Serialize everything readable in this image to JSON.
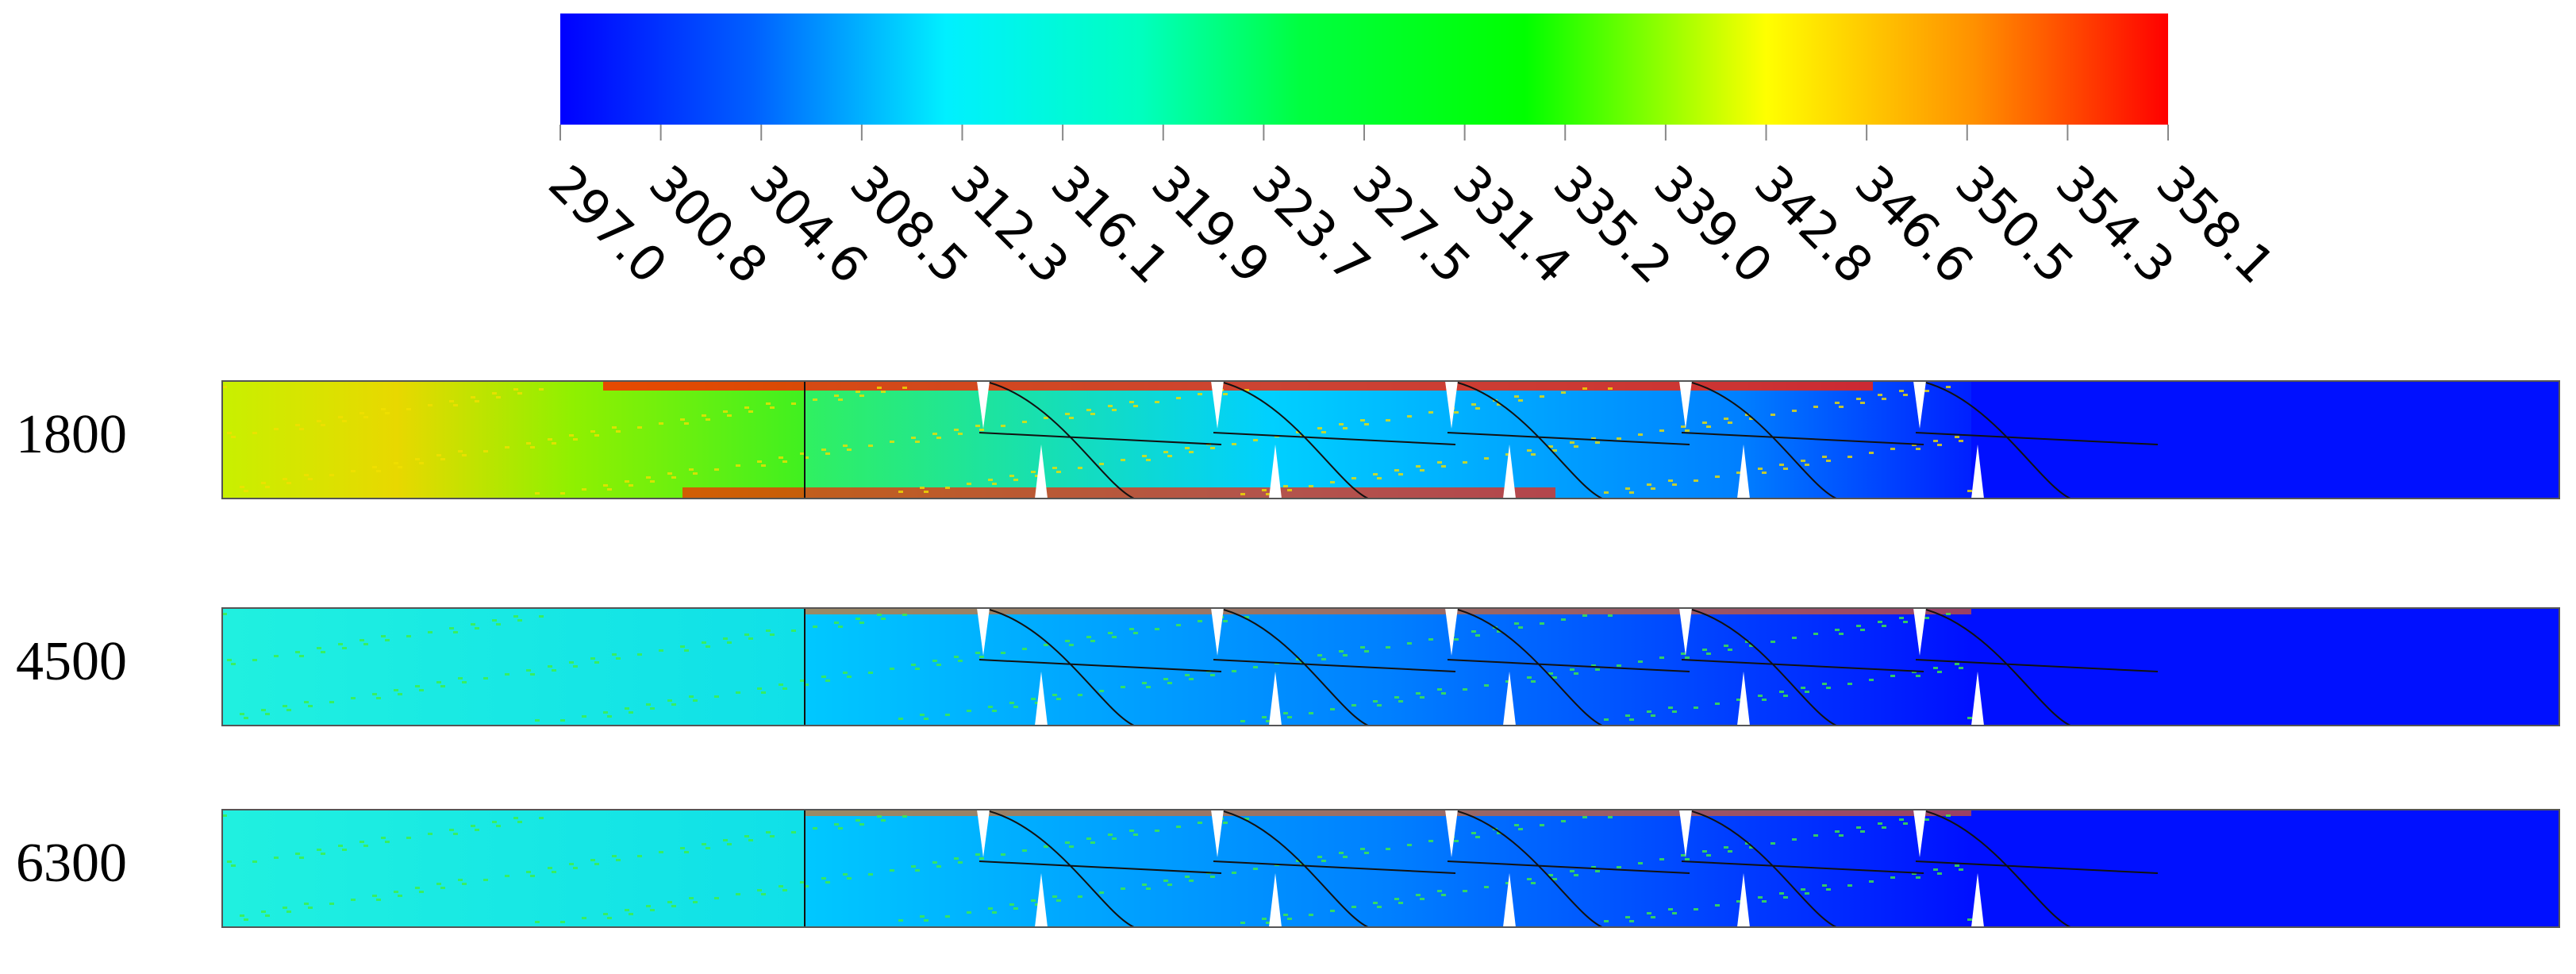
{
  "colorbar": {
    "ticks": [
      "297.0",
      "300.8",
      "304.6",
      "308.5",
      "312.3",
      "316.1",
      "319.9",
      "323.7",
      "327.5",
      "331.4",
      "335.2",
      "339.0",
      "342.8",
      "346.6",
      "350.5",
      "354.3",
      "358.1"
    ]
  },
  "rows": [
    {
      "label": "1800"
    },
    {
      "label": "4500"
    },
    {
      "label": "6300"
    }
  ]
}
